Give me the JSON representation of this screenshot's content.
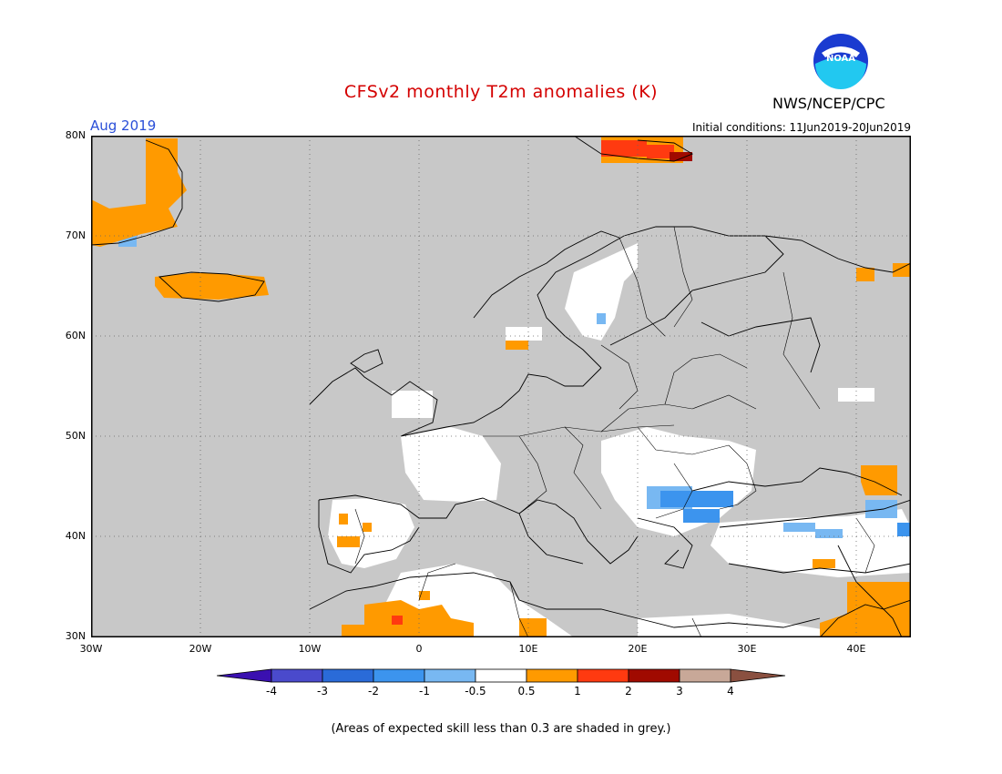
{
  "header": {
    "title": "CFSv2 monthly T2m anomalies (K)",
    "agency": "NWS/NCEP/CPC",
    "valid_month": "Aug 2019",
    "initial_conditions": "Initial conditions: 11Jun2019-20Jun2019"
  },
  "logo": {
    "text": "NOAA",
    "icon": "noaa-logo"
  },
  "map": {
    "projection": "lat-lon",
    "lon_range": [
      -30,
      45
    ],
    "lat_range": [
      30,
      80
    ],
    "grid": "dotted",
    "lat_labels": [
      "80N",
      "70N",
      "60N",
      "50N",
      "40N",
      "30N"
    ],
    "lon_labels": [
      "30W",
      "20W",
      "10W",
      "0",
      "10E",
      "20E",
      "30E",
      "40E"
    ],
    "colors": {
      "background": "#c8c8c8",
      "near_normal": "#ffffff"
    }
  },
  "colorbar": {
    "levels": [
      "-4",
      "-3",
      "-2",
      "-1",
      "-0.5",
      "0.5",
      "1",
      "2",
      "3",
      "4"
    ],
    "colors": [
      "#3a10b0",
      "#4a4acc",
      "#2a6bd8",
      "#3c94ee",
      "#78b8f2",
      "#ffffff",
      "#ff9a00",
      "#ff3a10",
      "#a00a00",
      "#c8a898",
      "#8a5040"
    ]
  },
  "footnote": "(Areas of expected skill less than 0.3 are shaded in grey.)"
}
